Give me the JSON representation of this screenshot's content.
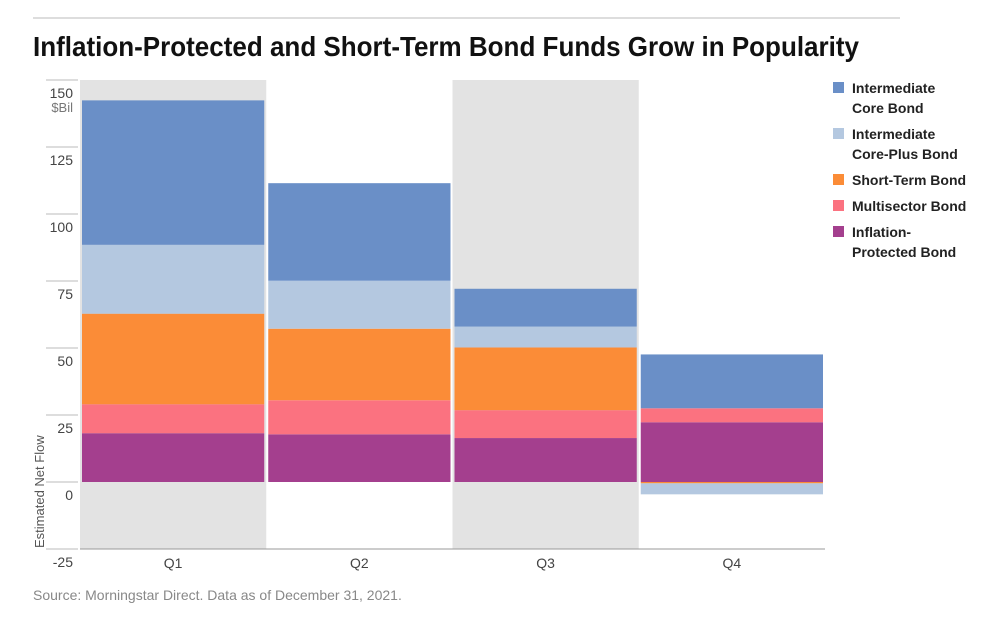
{
  "chart_data": {
    "type": "bar",
    "stacked": true,
    "title": "Inflation-Protected and Short-Term Bond Funds Grow in Popularity",
    "ylabel": "Estimated Net Flow",
    "unit": "$Bil",
    "source": "Source: Morningstar Direct. Data as of December 31, 2021.",
    "categories": [
      "Q1",
      "Q2",
      "Q3",
      "Q4"
    ],
    "series": [
      {
        "name": "Intermediate Core Bond",
        "color": "#6a8fc7",
        "values": [
          53.9,
          36.4,
          14.1,
          20.1
        ]
      },
      {
        "name": "Intermediate Core-Plus Bond",
        "color": "#b4c8e0",
        "values": [
          25.7,
          17.9,
          7.8,
          -4.1
        ]
      },
      {
        "name": "Short-Term Bond",
        "color": "#fb8c37",
        "values": [
          33.8,
          26.7,
          23.4,
          -0.5
        ]
      },
      {
        "name": "Multisector Bond",
        "color": "#fb7280",
        "values": [
          10.8,
          12.7,
          10.4,
          5.2
        ]
      },
      {
        "name": "Inflation-Protected Bond",
        "color": "#a43f8e",
        "values": [
          18.2,
          17.8,
          16.4,
          22.3
        ]
      }
    ],
    "ylim": [
      -25,
      150
    ],
    "yticks": [
      -25,
      0,
      25,
      50,
      75,
      100,
      125,
      150
    ],
    "shaded_categories": true,
    "legend": "right"
  }
}
